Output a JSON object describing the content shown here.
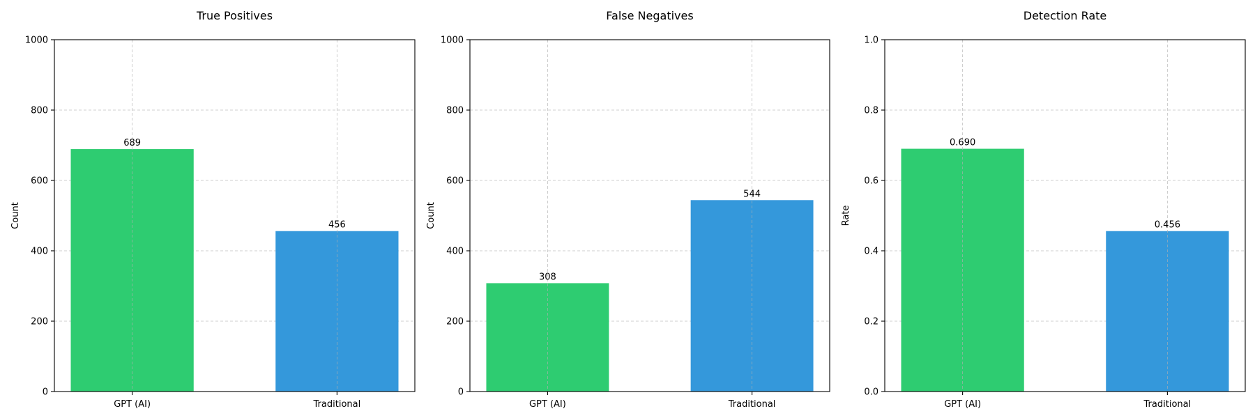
{
  "chart_data": [
    {
      "type": "bar",
      "title": "True Positives",
      "xlabel": "",
      "ylabel": "Count",
      "categories": [
        "GPT (AI)",
        "Traditional"
      ],
      "values": [
        689,
        456
      ],
      "value_labels": [
        "689",
        "456"
      ],
      "colors": [
        "#2ecc71",
        "#3498db"
      ],
      "ylim": [
        0,
        1000
      ],
      "yticks": [
        0,
        200,
        400,
        600,
        800,
        1000
      ],
      "ytick_labels": [
        "0",
        "200",
        "400",
        "600",
        "800",
        "1000"
      ],
      "grid": true
    },
    {
      "type": "bar",
      "title": "False Negatives",
      "xlabel": "",
      "ylabel": "Count",
      "categories": [
        "GPT (AI)",
        "Traditional"
      ],
      "values": [
        308,
        544
      ],
      "value_labels": [
        "308",
        "544"
      ],
      "colors": [
        "#2ecc71",
        "#3498db"
      ],
      "ylim": [
        0,
        1000
      ],
      "yticks": [
        0,
        200,
        400,
        600,
        800,
        1000
      ],
      "ytick_labels": [
        "0",
        "200",
        "400",
        "600",
        "800",
        "1000"
      ],
      "grid": true
    },
    {
      "type": "bar",
      "title": "Detection Rate",
      "xlabel": "",
      "ylabel": "Rate",
      "categories": [
        "GPT (AI)",
        "Traditional"
      ],
      "values": [
        0.69,
        0.456
      ],
      "value_labels": [
        "0.690",
        "0.456"
      ],
      "colors": [
        "#2ecc71",
        "#3498db"
      ],
      "ylim": [
        0,
        1
      ],
      "yticks": [
        0,
        0.2,
        0.4,
        0.6,
        0.8,
        1.0
      ],
      "ytick_labels": [
        "0.0",
        "0.2",
        "0.4",
        "0.6",
        "0.8",
        "1.0"
      ],
      "grid": true
    }
  ]
}
